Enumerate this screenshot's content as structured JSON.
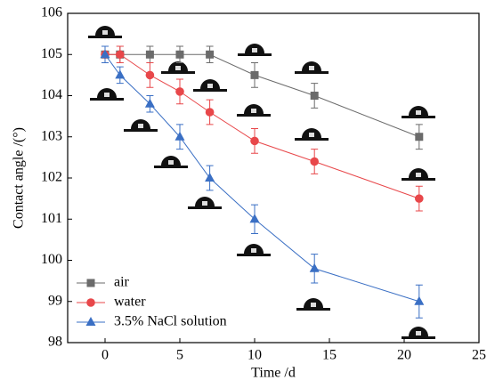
{
  "chart_data": {
    "type": "line",
    "x_label": "Time /d",
    "y_label": "Contact angle /(°)",
    "x": [
      0,
      1,
      3,
      5,
      7,
      10,
      14,
      21
    ],
    "series": [
      {
        "name": "air",
        "color": "#6b6b6b",
        "marker": "square",
        "values": [
          105,
          105,
          105,
          105,
          105,
          104.5,
          104,
          103
        ],
        "errors": [
          0.2,
          0.2,
          0.2,
          0.2,
          0.2,
          0.3,
          0.3,
          0.3
        ]
      },
      {
        "name": "water",
        "color": "#e8474a",
        "marker": "circle",
        "values": [
          105,
          105,
          104.5,
          104.1,
          103.6,
          102.9,
          102.4,
          101.5
        ],
        "errors": [
          0.2,
          0.2,
          0.3,
          0.3,
          0.3,
          0.3,
          0.3,
          0.3
        ]
      },
      {
        "name": "3.5% NaCl solution",
        "color": "#3a6fc4",
        "marker": "triangle",
        "values": [
          105,
          104.5,
          103.8,
          103,
          102,
          101,
          99.8,
          99
        ],
        "errors": [
          0.2,
          0.2,
          0.2,
          0.3,
          0.3,
          0.35,
          0.35,
          0.4
        ]
      }
    ],
    "xlim": [
      -2.5,
      25
    ],
    "xticks": [
      0,
      5,
      10,
      15,
      20,
      25
    ],
    "ylim": [
      98,
      106
    ],
    "yticks": [
      98,
      99,
      100,
      101,
      102,
      103,
      104,
      105,
      106
    ],
    "legend": "lower left"
  }
}
